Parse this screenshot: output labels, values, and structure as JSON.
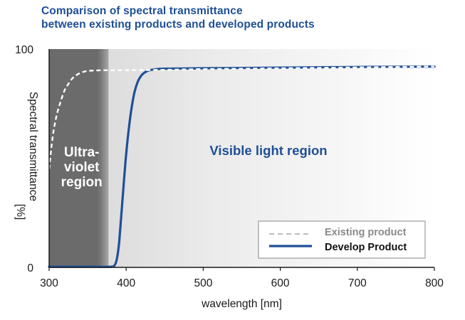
{
  "title_lines": [
    "Comparison of spectral transmittance",
    "between existing products and developed products"
  ],
  "chart_data": {
    "type": "line",
    "title": "Comparison of spectral transmittance between existing products and developed products",
    "xlabel": "wavelength [nm]",
    "ylabel_lines": [
      "Spectral transmittance",
      "[%]"
    ],
    "xlim": [
      300,
      800
    ],
    "ylim": [
      0,
      100
    ],
    "xticks": [
      "300",
      "400",
      "500",
      "600",
      "700",
      "800"
    ],
    "yticks": [
      "0",
      "100"
    ],
    "x_tick_values": [
      300,
      400,
      500,
      600,
      700,
      800
    ],
    "y_tick_values": [
      0,
      100
    ],
    "regions": {
      "uv_label": [
        "Ultra-",
        "violet",
        "region"
      ],
      "uv_range": [
        300,
        390
      ],
      "visible_label": "Visible light region"
    },
    "series": [
      {
        "name": "Existing product",
        "style": "dashed",
        "color": "#ffffff",
        "x": [
          300,
          303,
          306,
          310,
          315,
          320,
          325,
          330,
          335,
          340,
          345,
          350,
          360,
          370,
          380,
          400,
          450,
          500,
          600,
          700,
          800
        ],
        "y": [
          45,
          55,
          63,
          70,
          76,
          81,
          84,
          86.5,
          88,
          89,
          89.6,
          90,
          90.2,
          90.3,
          90.3,
          90.3,
          90.5,
          90.8,
          91.2,
          91.6,
          92
        ]
      },
      {
        "name": "Develop Product",
        "style": "solid",
        "color": "#1f4f96",
        "x": [
          300,
          350,
          380,
          385,
          388,
          391,
          395,
          400,
          405,
          410,
          415,
          420,
          425,
          430,
          440,
          450,
          500,
          600,
          700,
          800
        ],
        "y": [
          0.3,
          0.3,
          0.3,
          1,
          4,
          12,
          30,
          52,
          68,
          79,
          85,
          88,
          89.5,
          90.3,
          90.8,
          91,
          91.2,
          91.5,
          91.8,
          92
        ]
      }
    ],
    "legend": {
      "position": "bottom-right",
      "entries": [
        "Existing product",
        "Develop Product"
      ]
    },
    "grid": false
  },
  "colors": {
    "title": "#1f4f96",
    "uv_band": "#6b6b6b",
    "visible_band_start": "#c4c4c4",
    "visible_band_end": "#ffffff",
    "develop_line": "#1f4f96",
    "existing_line": "#ffffff",
    "legend_existing_text": "#8a8a8a",
    "legend_develop_text": "#111111"
  }
}
